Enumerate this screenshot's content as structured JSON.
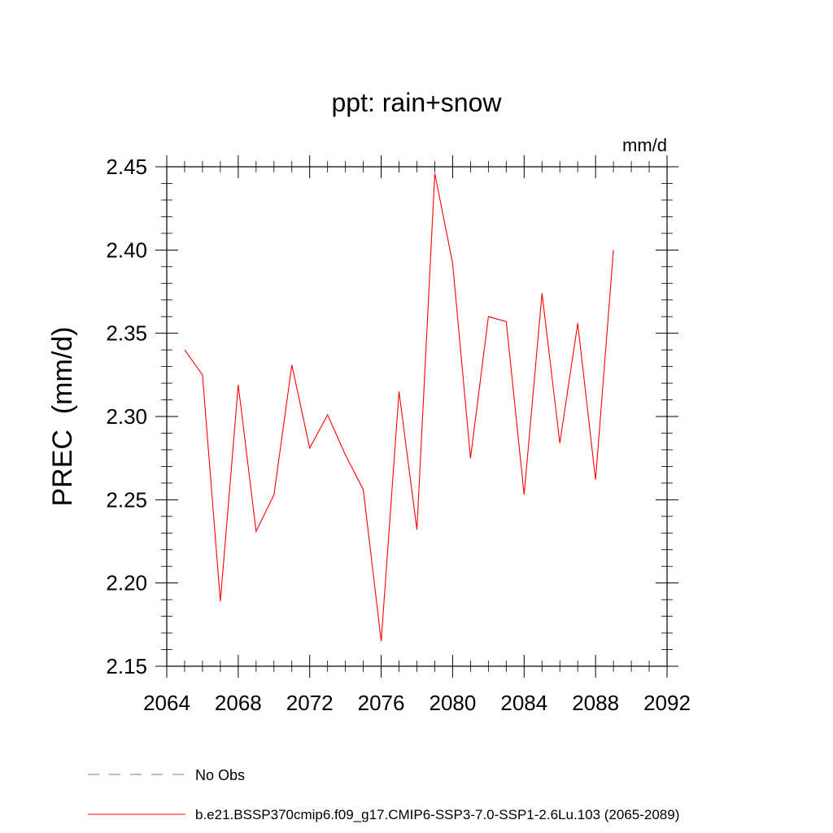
{
  "chart_data": {
    "type": "line",
    "title": "ppt: rain+snow",
    "units_label": "mm/d",
    "ylabel": "PREC  (mm/d)",
    "xlabel": "",
    "xlim": [
      2064,
      2092
    ],
    "ylim": [
      2.15,
      2.45
    ],
    "x_ticks": [
      "2064",
      "2068",
      "2072",
      "2076",
      "2080",
      "2084",
      "2088",
      "2092"
    ],
    "y_ticks": [
      "2.15",
      "2.20",
      "2.25",
      "2.30",
      "2.35",
      "2.40",
      "2.45"
    ],
    "grid": false,
    "series": [
      {
        "name": "b.e21.BSSP370cmip6.f09_g17.CMIP6-SSP3-7.0-SSP1-2.6Lu.103 (2065-2089)",
        "color": "#ff0000",
        "style": "solid",
        "x": [
          2065,
          2066,
          2067,
          2068,
          2069,
          2070,
          2071,
          2072,
          2073,
          2074,
          2075,
          2076,
          2077,
          2078,
          2079,
          2080,
          2081,
          2082,
          2083,
          2084,
          2085,
          2086,
          2087,
          2088,
          2089
        ],
        "values": [
          2.34,
          2.325,
          2.189,
          2.319,
          2.231,
          2.253,
          2.331,
          2.281,
          2.301,
          2.277,
          2.256,
          2.165,
          2.315,
          2.232,
          2.446,
          2.392,
          2.275,
          2.36,
          2.357,
          2.253,
          2.374,
          2.284,
          2.356,
          2.262,
          2.4
        ]
      }
    ],
    "legend": [
      {
        "label": "No Obs",
        "color": "#7b68c8",
        "style": "dashed"
      },
      {
        "label": "b.e21.BSSP370cmip6.f09_g17.CMIP6-SSP3-7.0-SSP1-2.6Lu.103 (2065-2089)",
        "color": "#ff0000",
        "style": "solid"
      }
    ],
    "legend_position": "bottom"
  }
}
